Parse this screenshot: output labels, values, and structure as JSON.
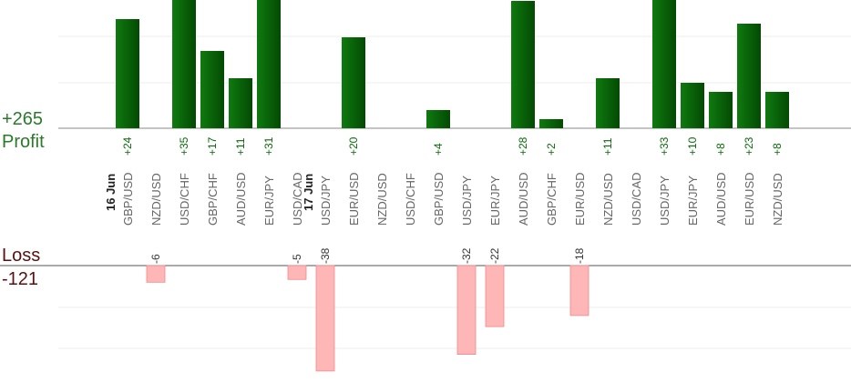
{
  "profit_panel": {
    "label": "Profit",
    "total": "+265"
  },
  "loss_panel": {
    "label": "Loss",
    "total": "-121"
  },
  "colors": {
    "profit_bar": "#0a6a0a",
    "loss_bar": "#ffb6b6",
    "profit_text": "#2a7a2a",
    "loss_text": "#5a1010"
  },
  "chart_data": {
    "type": "bar",
    "days": [
      {
        "label": "16 Jun",
        "first_index": 0
      },
      {
        "label": "17 Jun",
        "first_index": 7
      }
    ],
    "categories": [
      "GBP/USD",
      "NZD/USD",
      "USD/CHF",
      "GBP/CHF",
      "AUD/USD",
      "EUR/JPY",
      "USD/CAD",
      "USD/JPY",
      "EUR/USD",
      "NZD/USD",
      "USD/CHF",
      "GBP/USD",
      "USD/JPY",
      "EUR/JPY",
      "AUD/USD",
      "GBP/CHF",
      "EUR/USD",
      "NZD/USD",
      "USD/CAD",
      "USD/JPY",
      "EUR/JPY",
      "AUD/USD",
      "EUR/USD",
      "NZD/USD"
    ],
    "values": [
      24,
      -6,
      35,
      17,
      11,
      31,
      -5,
      -38,
      20,
      null,
      null,
      4,
      -32,
      -22,
      28,
      2,
      -18,
      11,
      null,
      33,
      10,
      8,
      23,
      8
    ],
    "profit_labels": [
      "+24",
      null,
      "+35",
      "+17",
      "+11",
      "+31",
      null,
      null,
      "+20",
      null,
      null,
      "+4",
      null,
      null,
      "+28",
      "+2",
      null,
      "+11",
      null,
      "+33",
      "+10",
      "+8",
      "+23",
      "+8"
    ],
    "loss_labels": [
      null,
      "-6",
      null,
      null,
      null,
      null,
      "-5",
      "-38",
      null,
      null,
      null,
      null,
      "-32",
      "-22",
      null,
      null,
      "-18",
      null,
      null,
      null,
      null,
      null,
      null,
      null
    ],
    "profit_axis_max": 28,
    "loss_axis_max": 45,
    "grid": true
  }
}
